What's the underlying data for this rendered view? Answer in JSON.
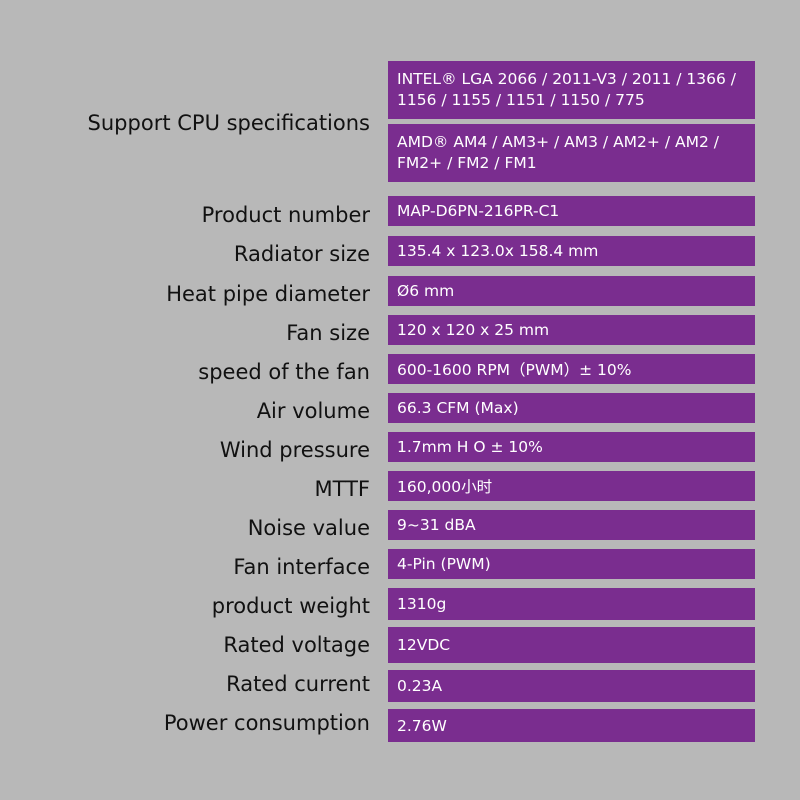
{
  "specs": {
    "cpu": {
      "label": "Support CPU specifications",
      "intel": [
        "INTEL® LGA  2066 / 2011-V3 / 2011 / 1366 /",
        " 1156 / 1155 / 1151 / 1150 / 775"
      ],
      "amd": [
        "AMD® AM4 / AM3+ / AM3 / AM2+ / AM2 /",
        "FM2+ / FM2 / FM1"
      ]
    },
    "rows": [
      {
        "label": "Product number",
        "value": "MAP-D6PN-216PR-C1"
      },
      {
        "label": "Radiator size",
        "value": "135.4 x 123.0x 158.4 mm"
      },
      {
        "label": "Heat pipe diameter",
        "value": "Ø6 mm"
      },
      {
        "label": "Fan size",
        "value": "120 x 120 x 25 mm"
      },
      {
        "label": "speed of the fan",
        "value": "600-1600 RPM（PWM）± 10%"
      },
      {
        "label": "Air volume",
        "value": "66.3 CFM (Max)"
      },
      {
        "label": "Wind pressure",
        "value": "1.7mm  H O ± 10%"
      },
      {
        "label": "MTTF",
        "value": "160,000小时"
      },
      {
        "label": "Noise value",
        "value": "9~31 dBA"
      },
      {
        "label": "Fan interface",
        "value": "4-Pin (PWM)"
      },
      {
        "label": "product weight",
        "value": "1310g"
      },
      {
        "label": "Rated voltage",
        "value": "12VDC"
      },
      {
        "label": "Rated current",
        "value": "0.23A"
      },
      {
        "label": "Power consumption",
        "value": "2.76W"
      }
    ]
  }
}
